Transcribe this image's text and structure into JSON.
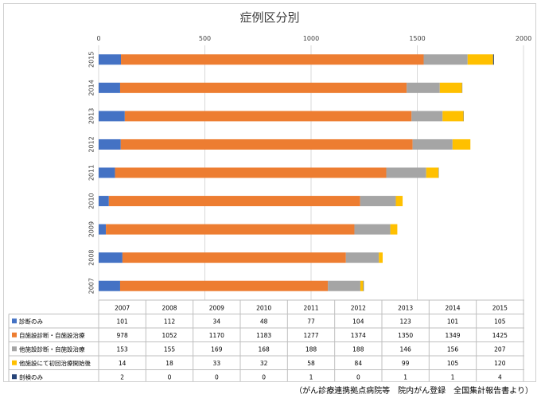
{
  "chart_data": {
    "type": "bar",
    "orientation": "horizontal",
    "stacked": true,
    "title": "症例区分別",
    "categories": [
      "2007",
      "2008",
      "2009",
      "2010",
      "2011",
      "2012",
      "2013",
      "2014",
      "2015"
    ],
    "xlim": [
      0,
      2000
    ],
    "xticks": [
      0,
      500,
      1000,
      1500,
      2000
    ],
    "series": [
      {
        "name": "診断のみ",
        "color": "#4472c4",
        "values": [
          101,
          112,
          34,
          48,
          77,
          104,
          123,
          101,
          105
        ]
      },
      {
        "name": "自施設診断・自施設治療",
        "color": "#ed7d31",
        "values": [
          978,
          1052,
          1170,
          1183,
          1277,
          1374,
          1350,
          1349,
          1425
        ]
      },
      {
        "name": "他施設診断・自施設治療",
        "color": "#a5a5a5",
        "values": [
          153,
          155,
          169,
          168,
          188,
          188,
          146,
          156,
          207
        ]
      },
      {
        "name": "他施設にて初回治療開始後",
        "color": "#ffc000",
        "values": [
          14,
          18,
          33,
          32,
          58,
          84,
          99,
          105,
          120
        ]
      },
      {
        "name": "剖検のみ",
        "color": "#264478",
        "values": [
          2,
          0,
          0,
          0,
          1,
          0,
          1,
          1,
          4
        ]
      }
    ]
  },
  "source_note": "（がん診療連携拠点病院等　院内がん登録　全国集計報告書より）"
}
